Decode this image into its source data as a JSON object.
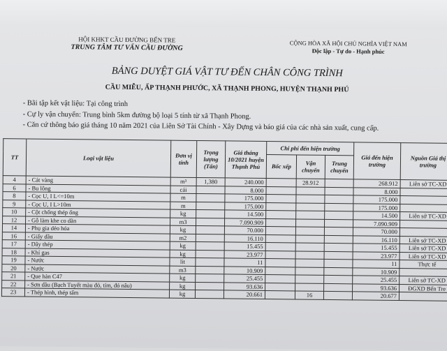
{
  "header": {
    "org_parent": "HỘI KHKT CẦU ĐƯỜNG BẾN TRE",
    "org_name": "TRUNG TÂM TƯ VẤN CẦU ĐƯỜNG",
    "country": "CỘNG HÒA XÃ HỘI CHỦ NGHĨA VIỆT NAM",
    "motto": "Độc lập - Tự do - Hạnh phúc"
  },
  "title": "BẢNG DUYỆT GIÁ VẬT TƯ ĐẾN CHÂN CÔNG TRÌNH",
  "subtitle": "CẦU MIỄU, ẤP THẠNH PHƯỚC, XÃ THẠNH PHONG, HUYỆN THẠNH PHÚ",
  "notes": [
    "- Bãi tập kết vật liệu: Tại công trình",
    "- Cự ly vận chuyển: Trung bình 5km đường bộ loại 5 tính từ xã Thạnh Phong.",
    "- Căn cứ thông báo giá tháng 10 năm 2021 của Liên Sở Tài Chính - Xây Dựng và báo giá của các nhà sản xuất, cung cấp."
  ],
  "table": {
    "headers": {
      "tt": "TT",
      "material": "Loại vật liệu",
      "unit": "Đơn vị tính",
      "weight": "Trọng lượng (Tấn)",
      "price": "Giá tháng 10/2021 huyện Thạnh Phú",
      "cost_group": "Chi phí đến hiện trường",
      "loading": "Bốc xếp",
      "transport": "Vận chuyển",
      "transfer": "Trung chuyển",
      "site_price": "Giá đến hiện trường",
      "source": "Nguồn Giá thị trường"
    },
    "rows": [
      {
        "tt": "4",
        "name": "- Cát vàng",
        "unit": "m³",
        "weight": "1,380",
        "price": "240.000",
        "loading": "",
        "transport": "28.912",
        "transfer": "",
        "site_price": "268.912",
        "source": "Liên sở TC-XD"
      },
      {
        "tt": "6",
        "name": "- Bu lông",
        "unit": "cái",
        "weight": "",
        "price": "8.000",
        "loading": "",
        "transport": "",
        "transfer": "",
        "site_price": "8.000",
        "source": ""
      },
      {
        "tt": "8",
        "name": "- Cọc U, I L<=10m",
        "unit": "m",
        "weight": "",
        "price": "175.000",
        "loading": "",
        "transport": "",
        "transfer": "",
        "site_price": "175.000",
        "source": ""
      },
      {
        "tt": "9",
        "name": "- Cọc U, I L>10m",
        "unit": "m",
        "weight": "",
        "price": "175.000",
        "loading": "",
        "transport": "",
        "transfer": "",
        "site_price": "175.000",
        "source": ""
      },
      {
        "tt": "10",
        "name": "- Cột chống thép ống",
        "unit": "kg",
        "weight": "",
        "price": "14.500",
        "loading": "",
        "transport": "",
        "transfer": "",
        "site_price": "14.500",
        "source": "Liên sở TC-XD"
      },
      {
        "tt": "12",
        "name": "- Gỗ làm khe co dãn",
        "unit": "m3",
        "weight": "",
        "price": "7.090.909",
        "loading": "",
        "transport": "",
        "transfer": "",
        "site_price": "7.090.909",
        "source": ""
      },
      {
        "tt": "14",
        "name": "- Phụ gia dẻo hóa",
        "unit": "kg",
        "weight": "",
        "price": "70.000",
        "loading": "",
        "transport": "",
        "transfer": "",
        "site_price": "70.000",
        "source": ""
      },
      {
        "tt": "16",
        "name": "- Giấy dầu",
        "unit": "m2",
        "weight": "",
        "price": "16.110",
        "loading": "",
        "transport": "",
        "transfer": "",
        "site_price": "16.110",
        "source": "Liên sở TC-XD"
      },
      {
        "tt": "17",
        "name": "- Dây thép",
        "unit": "kg",
        "weight": "",
        "price": "15.455",
        "loading": "",
        "transport": "",
        "transfer": "",
        "site_price": "15.455",
        "source": "Liên sở TC-XD"
      },
      {
        "tt": "18",
        "name": "- Khí gas",
        "unit": "kg",
        "weight": "",
        "price": "23.977",
        "loading": "",
        "transport": "",
        "transfer": "",
        "site_price": "23.977",
        "source": "Liên sở TC-XD"
      },
      {
        "tt": "19",
        "name": "- Nước",
        "unit": "lit",
        "weight": "",
        "price": "11",
        "loading": "",
        "transport": "",
        "transfer": "",
        "site_price": "11",
        "source": "Thực tế"
      },
      {
        "tt": "20",
        "name": "- Nước",
        "unit": "m3",
        "weight": "",
        "price": "10.909",
        "loading": "",
        "transport": "",
        "transfer": "",
        "site_price": "10.909",
        "source": ""
      },
      {
        "tt": "21",
        "name": "- Que hàn C47",
        "unit": "kg",
        "weight": "",
        "price": "25.455",
        "loading": "",
        "transport": "",
        "transfer": "",
        "site_price": "25.455",
        "source": "Liên sở TC-XD"
      },
      {
        "tt": "22",
        "name": "- Sơn dầu (Bạch Tuyết màu đỏ, tím, đỏ nâu)",
        "unit": "kg",
        "weight": "",
        "price": "93.636",
        "loading": "",
        "transport": "",
        "transfer": "",
        "site_price": "93.636",
        "source": "ĐGXD Bến Tre"
      },
      {
        "tt": "23",
        "name": "- Thép hình, thép tấm",
        "unit": "kg",
        "weight": "",
        "price": "20.661",
        "loading": "",
        "transport": "16",
        "transfer": "",
        "site_price": "20.677",
        "source": ""
      }
    ]
  }
}
